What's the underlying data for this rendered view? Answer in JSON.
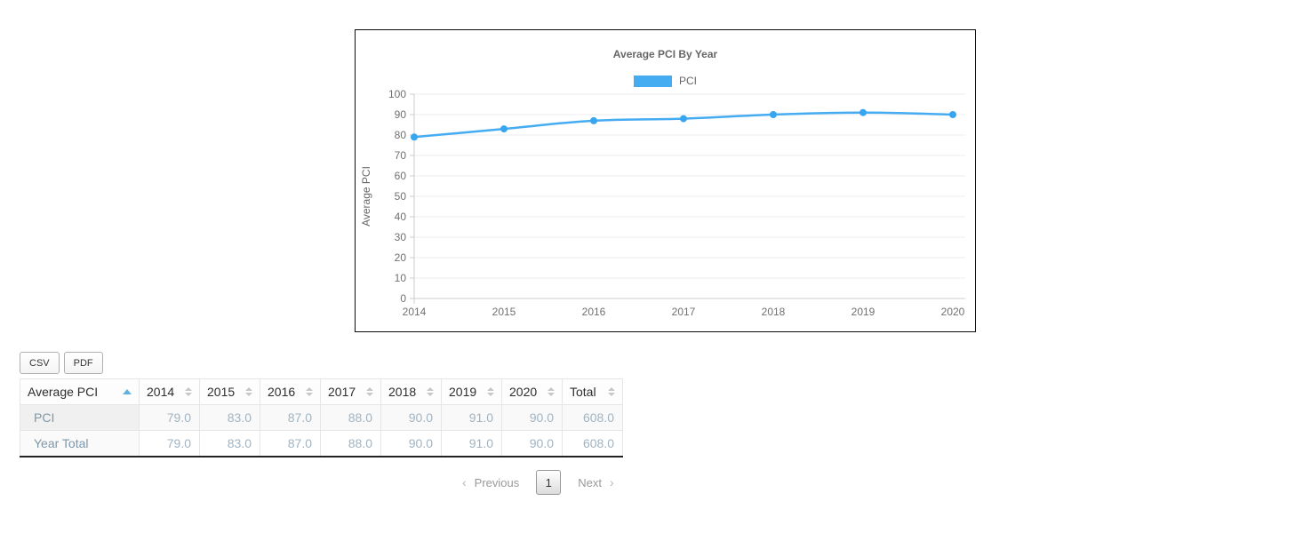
{
  "chart": {
    "line_color": "#45acf2",
    "point_color": "#38a5f0",
    "grid_color": "#ededed",
    "axis_color": "#cccccc",
    "sort_active_color": "#62b2e0"
  },
  "chart_data": {
    "type": "line",
    "title": "Average PCI By Year",
    "x": [
      "2014",
      "2015",
      "2016",
      "2017",
      "2018",
      "2019",
      "2020"
    ],
    "series": [
      {
        "name": "PCI",
        "values": [
          79,
          83,
          87,
          88,
          90,
          91,
          90
        ]
      }
    ],
    "xlabel": "",
    "ylabel": "Average PCI",
    "ylim": [
      0,
      100
    ],
    "ytick_step": 10,
    "grid": true,
    "legend_position": "top"
  },
  "toolbar": {
    "csv_label": "CSV",
    "pdf_label": "PDF"
  },
  "table": {
    "headers": [
      "Average PCI",
      "2014",
      "2015",
      "2016",
      "2017",
      "2018",
      "2019",
      "2020",
      "Total"
    ],
    "sort": {
      "column": 0,
      "direction": "asc"
    },
    "rows": [
      {
        "label": "PCI",
        "values": [
          "79.0",
          "83.0",
          "87.0",
          "88.0",
          "90.0",
          "91.0",
          "90.0",
          "608.0"
        ]
      },
      {
        "label": "Year Total",
        "values": [
          "79.0",
          "83.0",
          "87.0",
          "88.0",
          "90.0",
          "91.0",
          "90.0",
          "608.0"
        ]
      }
    ]
  },
  "pagination": {
    "prev_icon": "‹",
    "prev_label": "Previous",
    "page": "1",
    "next_label": "Next",
    "next_icon": "›"
  }
}
